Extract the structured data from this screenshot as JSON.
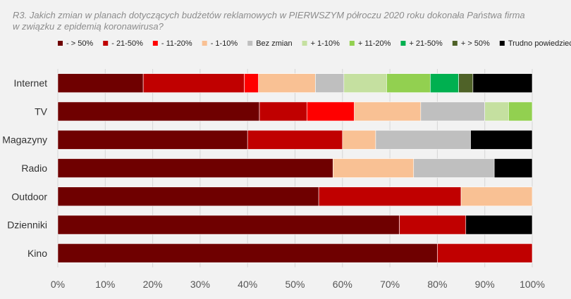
{
  "chart_data": {
    "type": "bar",
    "orientation": "horizontal",
    "stacked": true,
    "title_line1": "R3. Jakich zmian w planach dotyczących budżetów reklamowych w PIERWSZYM półroczu 2020 roku dokonała Państwa firma",
    "title_line2": "w związku z epidemią koronawirusa?",
    "categories": [
      "Internet",
      "TV",
      "Magazyny",
      "Radio",
      "Outdoor",
      "Dzienniki",
      "Kino"
    ],
    "xlim": [
      0,
      100
    ],
    "xticks": [
      0,
      10,
      20,
      30,
      40,
      50,
      60,
      70,
      80,
      90,
      100
    ],
    "xtick_labels": [
      "0%",
      "10%",
      "20%",
      "30%",
      "40%",
      "50%",
      "60%",
      "70%",
      "80%",
      "90%",
      "100%"
    ],
    "grid": true,
    "legend_position": "top",
    "series": [
      {
        "name": "- > 50%",
        "color": "#6f0000",
        "values": [
          18,
          42.5,
          40,
          58,
          55,
          72,
          80
        ]
      },
      {
        "name": "- 21-50%",
        "color": "#c00000",
        "values": [
          21.3,
          10,
          20,
          0,
          30,
          14,
          20
        ]
      },
      {
        "name": "- 11-20%",
        "color": "#ff0000",
        "values": [
          3,
          10,
          0,
          0,
          0,
          0,
          0
        ]
      },
      {
        "name": "- 1-10%",
        "color": "#f9c194",
        "values": [
          12,
          14,
          7,
          17,
          15,
          0,
          0
        ]
      },
      {
        "name": "Bez zmian",
        "color": "#bfbfbf",
        "values": [
          6,
          13.5,
          20,
          17,
          0,
          0,
          0
        ]
      },
      {
        "name": "+ 1-10%",
        "color": "#c5e0a0",
        "values": [
          9,
          5,
          0,
          0,
          0,
          0,
          0
        ]
      },
      {
        "name": "+ 11-20%",
        "color": "#92d050",
        "values": [
          9.2,
          5,
          0,
          0,
          0,
          0,
          0
        ]
      },
      {
        "name": "+ 21-50%",
        "color": "#00b050",
        "values": [
          6,
          0,
          0,
          0,
          0,
          0,
          0
        ]
      },
      {
        "name": "+ > 50%",
        "color": "#4f6228",
        "values": [
          3,
          0,
          0,
          0,
          0,
          0,
          0
        ]
      },
      {
        "name": "Trudno powiedzieć",
        "color": "#000000",
        "values": [
          12.5,
          0,
          13,
          8,
          0,
          14,
          0
        ]
      }
    ]
  }
}
